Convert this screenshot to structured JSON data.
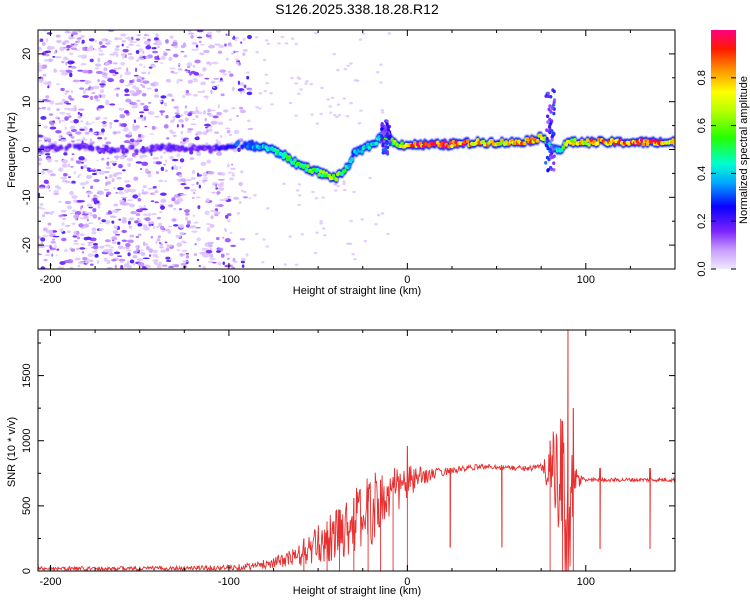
{
  "title": "S126.2025.338.18.28.R12",
  "colors": {
    "snr_line": "#e83030",
    "speckle": "#9b59f5",
    "frame": "#000000"
  },
  "chart_data": [
    {
      "type": "heatmap",
      "name": "spectrogram",
      "title": "S126.2025.338.18.28.R12",
      "xlabel": "Height of straight line (km)",
      "ylabel": "Frequency (Hz)",
      "xlim": [
        -207,
        150
      ],
      "ylim": [
        -25,
        25
      ],
      "xticks": [
        -200,
        -100,
        0,
        100
      ],
      "xtick_labels": [
        "-200",
        "-100",
        "0",
        "100"
      ],
      "yticks": [
        -20,
        -10,
        0,
        10,
        20
      ],
      "ytick_labels": [
        "-20",
        "-10",
        "0",
        "10",
        "20"
      ],
      "colorbar": {
        "label": "Normalized spectral amplitude",
        "range": [
          0.0,
          1.0
        ],
        "ticks": [
          0.0,
          0.2,
          0.4,
          0.6,
          0.8
        ],
        "tick_labels": [
          "0.0",
          "0.2",
          "0.4",
          "0.6",
          "0.8"
        ]
      },
      "noise_region_x": [
        -207,
        -88
      ],
      "ridge": {
        "x": [
          -207,
          -190,
          -170,
          -150,
          -130,
          -110,
          -95,
          -80,
          -70,
          -62,
          -55,
          -48,
          -40,
          -34,
          -30,
          -25,
          -20,
          -15,
          -12,
          -8,
          -3,
          0,
          10,
          20,
          30,
          40,
          50,
          60,
          70,
          75,
          78,
          80,
          83,
          86,
          90,
          95,
          100,
          110,
          120,
          130,
          140,
          150
        ],
        "freq": [
          0,
          0.5,
          0,
          0,
          0.5,
          0,
          1,
          0.5,
          -1,
          -3,
          -4,
          -5,
          -6,
          -4,
          -1,
          0,
          1,
          2.5,
          3,
          1.5,
          1,
          1,
          1,
          1,
          1.2,
          1.5,
          1.5,
          1.5,
          2,
          2.5,
          2,
          1,
          0,
          0,
          1.5,
          1.5,
          1.5,
          1.5,
          1.5,
          1.5,
          1.5,
          1.5
        ],
        "amplitude": [
          0.15,
          0.15,
          0.15,
          0.15,
          0.15,
          0.15,
          0.3,
          0.4,
          0.45,
          0.5,
          0.55,
          0.55,
          0.6,
          0.45,
          0.35,
          0.4,
          0.45,
          0.5,
          0.55,
          0.6,
          0.65,
          0.8,
          0.9,
          0.95,
          0.9,
          0.75,
          0.7,
          0.75,
          0.85,
          0.7,
          0.5,
          0.45,
          0.45,
          0.5,
          0.65,
          0.7,
          0.75,
          0.8,
          0.85,
          0.85,
          0.85,
          0.8
        ]
      },
      "features": [
        {
          "x": 80,
          "freq_range": [
            -5,
            13
          ],
          "note": "vertical smear"
        },
        {
          "x": -12,
          "freq_range": [
            -1,
            6
          ],
          "note": "small spike"
        }
      ]
    },
    {
      "type": "line",
      "name": "snr",
      "title": "",
      "xlabel": "Height of straight line (km)",
      "ylabel": "SNR (10 * v/v)",
      "xlim": [
        -207,
        150
      ],
      "ylim": [
        0,
        1850
      ],
      "xticks": [
        -200,
        -100,
        0,
        100
      ],
      "xtick_labels": [
        "-200",
        "-100",
        "0",
        "100"
      ],
      "yticks": [
        0,
        500,
        1000,
        1500
      ],
      "ytick_labels": [
        "0",
        "500",
        "1000",
        "1500"
      ],
      "series": [
        {
          "name": "SNR",
          "envelope": {
            "x": [
              -207,
              -150,
              -100,
              -85,
              -70,
              -60,
              -50,
              -40,
              -30,
              -20,
              -10,
              0,
              10,
              20,
              30,
              40,
              50,
              60,
              70,
              75,
              80,
              85,
              90,
              95,
              100,
              110,
              120,
              130,
              140,
              150
            ],
            "base": [
              20,
              20,
              25,
              40,
              80,
              120,
              200,
              280,
              380,
              470,
              580,
              680,
              730,
              760,
              780,
              800,
              800,
              790,
              790,
              800,
              780,
              640,
              420,
              700,
              700,
              700,
              700,
              700,
              700,
              700
            ],
            "amp": [
              15,
              15,
              20,
              30,
              50,
              90,
              150,
              200,
              250,
              280,
              220,
              140,
              60,
              30,
              25,
              20,
              20,
              20,
              20,
              30,
              250,
              550,
              700,
              80,
              20,
              15,
              15,
              15,
              15,
              15
            ]
          },
          "spikes": [
            {
              "x": -58,
              "y": 250
            },
            {
              "x": -45,
              "y": 380
            },
            {
              "x": -38,
              "y": 470
            },
            {
              "x": -30,
              "y": 560
            },
            {
              "x": -22,
              "y": 640
            },
            {
              "x": -15,
              "y": 700
            },
            {
              "x": -8,
              "y": 720
            },
            {
              "x": 0,
              "y": 960
            },
            {
              "x": 80,
              "y": 1000
            },
            {
              "x": 87,
              "y": 1150
            },
            {
              "x": 90,
              "y": 1850
            },
            {
              "x": 93,
              "y": 1250
            }
          ],
          "dips": [
            {
              "x": 24,
              "y": 180
            },
            {
              "x": 53,
              "y": 180
            },
            {
              "x": 108,
              "y": 170
            },
            {
              "x": 136,
              "y": 170
            }
          ]
        }
      ]
    }
  ]
}
